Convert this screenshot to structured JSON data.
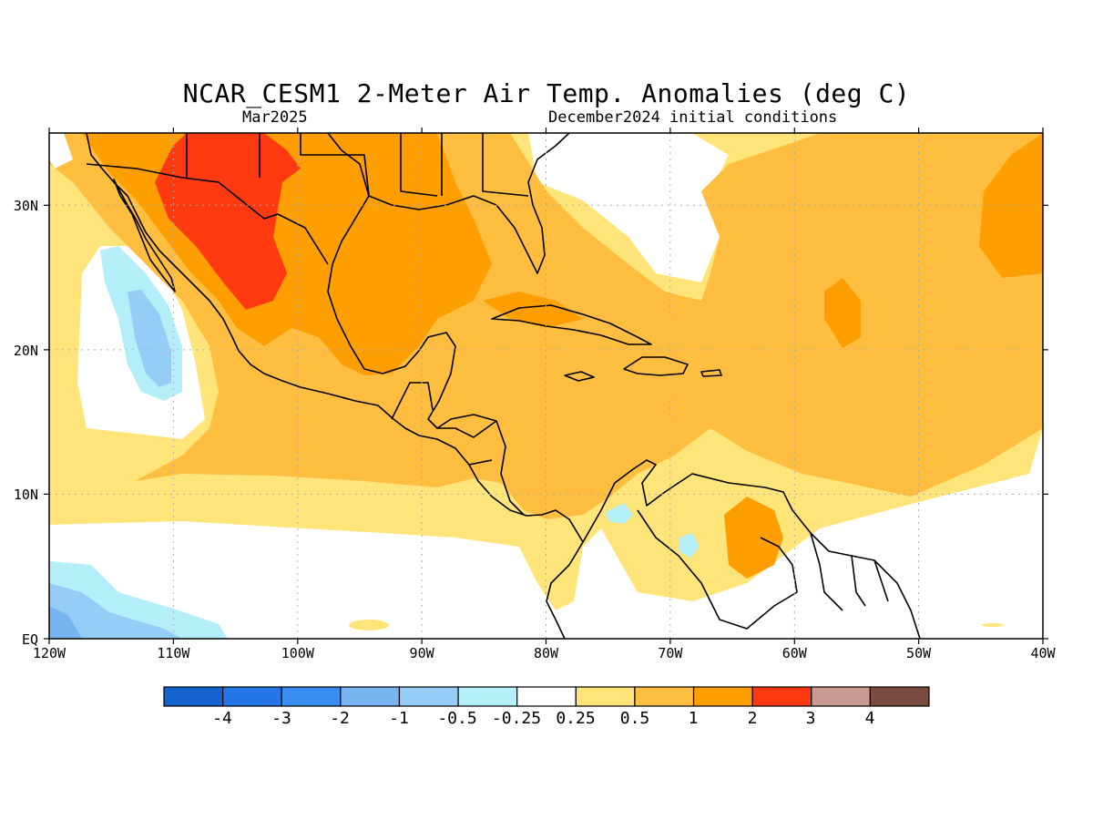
{
  "header": {
    "title": "NCAR_CESM1 2-Meter Air Temp. Anomalies (deg C)",
    "valid_month": "Mar2025",
    "init": "December2024 initial conditions"
  },
  "map": {
    "lon_range": [
      -120,
      -40
    ],
    "lat_range": [
      0,
      35
    ],
    "x_ticks": [
      "120W",
      "110W",
      "100W",
      "90W",
      "80W",
      "70W",
      "60W",
      "50W",
      "40W"
    ],
    "y_ticks": [
      "EQ",
      "10N",
      "20N",
      "30N"
    ],
    "grid": "dotted"
  },
  "colorbar": {
    "colors": [
      "#1563cf",
      "#2575e8",
      "#3a8ef0",
      "#76b4f2",
      "#96cdf6",
      "#b4eef9",
      "#ffffff",
      "#ffe47a",
      "#ffbe40",
      "#ff9e00",
      "#ff3a10",
      "#c89a90",
      "#7a4c40"
    ],
    "labels": [
      "-4",
      "-3",
      "-2",
      "-1",
      "-0.5",
      "-0.25",
      "0.25",
      "0.5",
      "1",
      "2",
      "3",
      "4"
    ]
  }
}
